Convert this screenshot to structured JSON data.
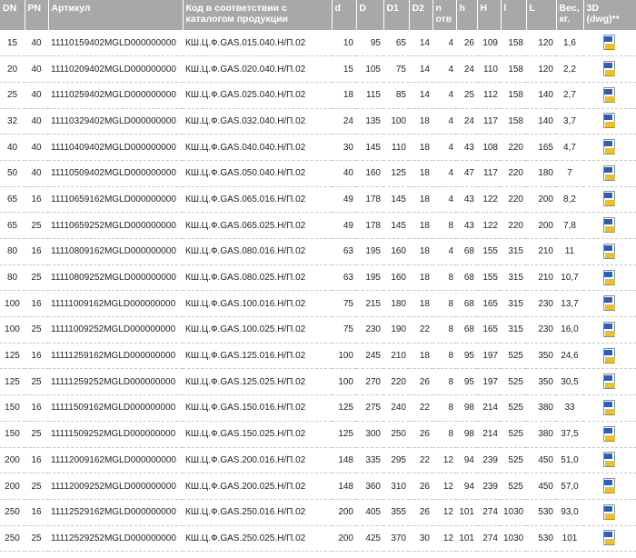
{
  "headers": [
    "DN",
    "PN",
    "Артикул",
    "Код в соответствии с каталогом продукции",
    "d",
    "D",
    "D1",
    "D2",
    "n отв",
    "h",
    "H",
    "l",
    "L",
    "Вес, кг.",
    "3D (dwg)**"
  ],
  "icon": "dwg-file-icon",
  "rows": [
    [
      "15",
      "40",
      "11110159402MGLD000000000",
      "КШ.Ц.Ф.GAS.015.040.Н/П.02",
      "10",
      "95",
      "65",
      "14",
      "4",
      "26",
      "109",
      "158",
      "120",
      "1,6"
    ],
    [
      "20",
      "40",
      "11110209402MGLD000000000",
      "КШ.Ц.Ф.GAS.020.040.Н/П.02",
      "15",
      "105",
      "75",
      "14",
      "4",
      "24",
      "110",
      "158",
      "120",
      "2,2"
    ],
    [
      "25",
      "40",
      "11110259402MGLD000000000",
      "КШ.Ц.Ф.GAS.025.040.Н/П.02",
      "18",
      "115",
      "85",
      "14",
      "4",
      "25",
      "112",
      "158",
      "140",
      "2,7"
    ],
    [
      "32",
      "40",
      "11110329402MGLD000000000",
      "КШ.Ц.Ф.GAS.032.040.Н/П.02",
      "24",
      "135",
      "100",
      "18",
      "4",
      "24",
      "117",
      "158",
      "140",
      "3,7"
    ],
    [
      "40",
      "40",
      "11110409402MGLD000000000",
      "КШ.Ц.Ф.GAS.040.040.Н/П.02",
      "30",
      "145",
      "110",
      "18",
      "4",
      "43",
      "108",
      "220",
      "165",
      "4,7"
    ],
    [
      "50",
      "40",
      "11110509402MGLD000000000",
      "КШ.Ц.Ф.GAS.050.040.Н/П.02",
      "40",
      "160",
      "125",
      "18",
      "4",
      "47",
      "117",
      "220",
      "180",
      "7"
    ],
    [
      "65",
      "16",
      "11110659162MGLD000000000",
      "КШ.Ц.Ф.GAS.065.016.Н/П.02",
      "49",
      "178",
      "145",
      "18",
      "4",
      "43",
      "122",
      "220",
      "200",
      "8,2"
    ],
    [
      "65",
      "25",
      "11110659252MGLD000000000",
      "КШ.Ц.Ф.GAS.065.025.Н/П.02",
      "49",
      "178",
      "145",
      "18",
      "8",
      "43",
      "122",
      "220",
      "200",
      "7,8"
    ],
    [
      "80",
      "16",
      "11110809162MGLD000000000",
      "КШ.Ц.Ф.GAS.080.016.Н/П.02",
      "63",
      "195",
      "160",
      "18",
      "4",
      "68",
      "155",
      "315",
      "210",
      "11"
    ],
    [
      "80",
      "25",
      "11110809252MGLD000000000",
      "КШ.Ц.Ф.GAS.080.025.Н/П.02",
      "63",
      "195",
      "160",
      "18",
      "8",
      "68",
      "155",
      "315",
      "210",
      "10,7"
    ],
    [
      "100",
      "16",
      "11111009162MGLD000000000",
      "КШ.Ц.Ф.GAS.100.016.Н/П.02",
      "75",
      "215",
      "180",
      "18",
      "8",
      "68",
      "165",
      "315",
      "230",
      "13,7"
    ],
    [
      "100",
      "25",
      "11111009252MGLD000000000",
      "КШ.Ц.Ф.GAS.100.025.Н/П.02",
      "75",
      "230",
      "190",
      "22",
      "8",
      "68",
      "165",
      "315",
      "230",
      "16,0"
    ],
    [
      "125",
      "16",
      "11111259162MGLD000000000",
      "КШ.Ц.Ф.GAS.125.016.Н/П.02",
      "100",
      "245",
      "210",
      "18",
      "8",
      "95",
      "197",
      "525",
      "350",
      "24,6"
    ],
    [
      "125",
      "25",
      "11111259252MGLD000000000",
      "КШ.Ц.Ф.GAS.125.025.Н/П.02",
      "100",
      "270",
      "220",
      "26",
      "8",
      "95",
      "197",
      "525",
      "350",
      "30,5"
    ],
    [
      "150",
      "16",
      "11111509162MGLD000000000",
      "КШ.Ц.Ф.GAS.150.016.Н/П.02",
      "125",
      "275",
      "240",
      "22",
      "8",
      "98",
      "214",
      "525",
      "380",
      "33"
    ],
    [
      "150",
      "25",
      "11111509252MGLD000000000",
      "КШ.Ц.Ф.GAS.150.025.Н/П.02",
      "125",
      "300",
      "250",
      "26",
      "8",
      "98",
      "214",
      "525",
      "380",
      "37,5"
    ],
    [
      "200",
      "16",
      "11112009162MGLD000000000",
      "КШ.Ц.Ф.GAS.200.016.Н/П.02",
      "148",
      "335",
      "295",
      "22",
      "12",
      "94",
      "239",
      "525",
      "450",
      "51,0"
    ],
    [
      "200",
      "25",
      "11112009252MGLD000000000",
      "КШ.Ц.Ф.GAS.200.025.Н/П.02",
      "148",
      "360",
      "310",
      "26",
      "12",
      "94",
      "239",
      "525",
      "450",
      "57,0"
    ],
    [
      "250",
      "16",
      "11112529162MGLD000000000",
      "КШ.Ц.Ф.GAS.250.016.Н/П.02",
      "200",
      "405",
      "355",
      "26",
      "12",
      "101",
      "274",
      "1030",
      "530",
      "93,0"
    ],
    [
      "250",
      "25",
      "11112529252MGLD000000000",
      "КШ.Ц.Ф.GAS.250.025.Н/П.02",
      "200",
      "425",
      "370",
      "30",
      "12",
      "101",
      "274",
      "1030",
      "530",
      "101"
    ]
  ]
}
